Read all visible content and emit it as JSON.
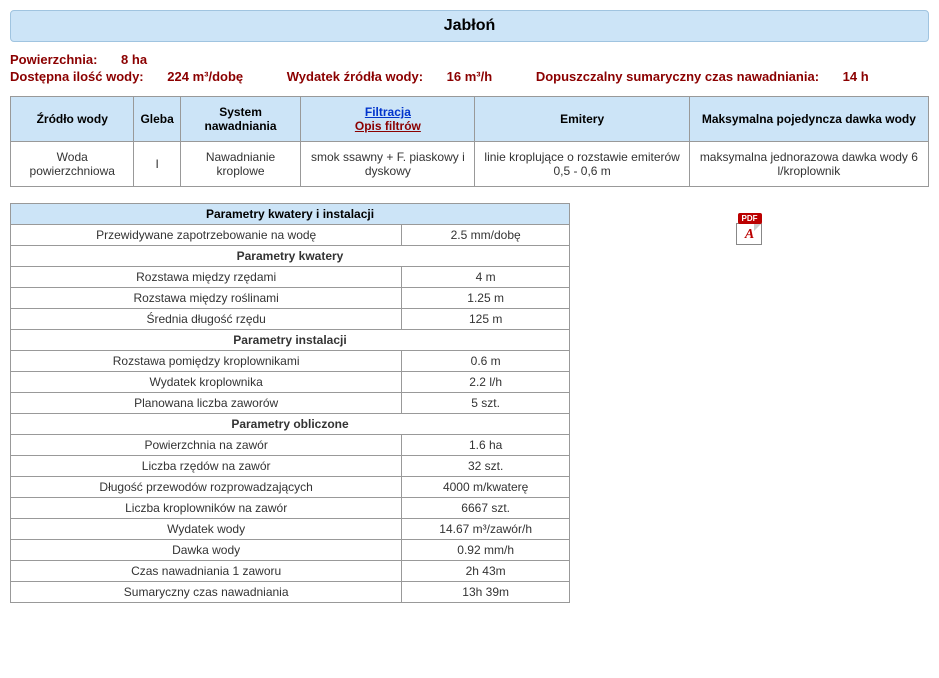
{
  "title": "Jabłoń",
  "info": {
    "area_label": "Powierzchnia:",
    "area_value": "8 ha",
    "water_avail_label": "Dostępna ilość wody:",
    "water_avail_value": "224 m³/dobę",
    "source_flow_label": "Wydatek źródła wody:",
    "source_flow_value": "16 m³/h",
    "max_time_label": "Dopuszczalny sumaryczny czas nawadniania:",
    "max_time_value": "14 h"
  },
  "main_table": {
    "headers": {
      "source": "Źródło wody",
      "soil": "Gleba",
      "system": "System nawadniania",
      "filtration": "Filtracja",
      "filtration_link": "Opis filtrów",
      "emitters": "Emitery",
      "max_dose": "Maksymalna pojedyncza dawka wody"
    },
    "row": {
      "source": "Woda powierzchniowa",
      "soil": "I",
      "system": "Nawadnianie kroplowe",
      "filtration": "smok ssawny + F. piaskowy i dyskowy",
      "emitters": "linie kroplujące o rozstawie emiterów 0,5 - 0,6 m",
      "max_dose": "maksymalna jednorazowa dawka wody 6 l/kroplownik"
    }
  },
  "params": {
    "section1_head": "Parametry kwatery i instalacji",
    "row_demand": {
      "label": "Przewidywane zapotrzebowanie na wodę",
      "value": "2.5 mm/dobę"
    },
    "section2_head": "Parametry kwatery",
    "row_rows_spacing": {
      "label": "Rozstawa między rzędami",
      "value": "4 m"
    },
    "row_plants_spacing": {
      "label": "Rozstawa między roślinami",
      "value": "1.25 m"
    },
    "row_row_length": {
      "label": "Średnia długość rzędu",
      "value": "125 m"
    },
    "section3_head": "Parametry instalacji",
    "row_dripper_spacing": {
      "label": "Rozstawa pomiędzy kroplownikami",
      "value": "0.6 m"
    },
    "row_dripper_flow": {
      "label": "Wydatek kroplownika",
      "value": "2.2 l/h"
    },
    "row_valves_count": {
      "label": "Planowana liczba zaworów",
      "value": "5 szt."
    },
    "section4_head": "Parametry obliczone",
    "row_area_per_valve": {
      "label": "Powierzchnia na zawór",
      "value": "1.6 ha"
    },
    "row_rows_per_valve": {
      "label": "Liczba rzędów na zawór",
      "value": "32 szt."
    },
    "row_pipe_length": {
      "label": "Długość przewodów rozprowadzających",
      "value": "4000 m/kwaterę"
    },
    "row_drippers_per_valve": {
      "label": "Liczba kroplowników na zawór",
      "value": "6667 szt."
    },
    "row_water_flow": {
      "label": "Wydatek wody",
      "value": "14.67 m³/zawór/h"
    },
    "row_water_dose": {
      "label": "Dawka wody",
      "value": "0.92 mm/h"
    },
    "row_valve_time": {
      "label": "Czas nawadniania 1 zaworu",
      "value": "2h 43m"
    },
    "row_total_time": {
      "label": "Sumaryczny czas nawadniania",
      "value": "13h 39m"
    }
  },
  "pdf_label": "PDF"
}
